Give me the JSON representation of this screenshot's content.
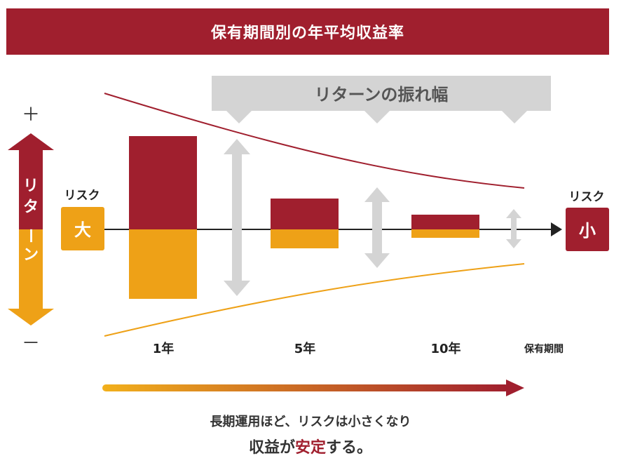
{
  "title": "保有期間別の年平均収益率",
  "banner": "リターンの振れ幅",
  "plus": "＋",
  "minus": "－",
  "vertical_label_top": [
    "リ",
    "タ"
  ],
  "vertical_label_bottom": [
    "ー",
    "ン"
  ],
  "risk_left": {
    "label": "リスク",
    "value": "大"
  },
  "risk_right": {
    "label": "リスク",
    "value": "小"
  },
  "periods": [
    "1年",
    "5年",
    "10年"
  ],
  "axis_end_label": "保有期間",
  "caption_line1": "長期運用ほど、リスクは小さくなり",
  "caption_line2_part1": "収益が",
  "caption_line2_highlight": "安定",
  "caption_line2_part2": "する。",
  "colors": {
    "crimson": "#a01f2e",
    "orange": "#eea117",
    "gray": "#d4d4d4",
    "dark": "#333333"
  }
}
